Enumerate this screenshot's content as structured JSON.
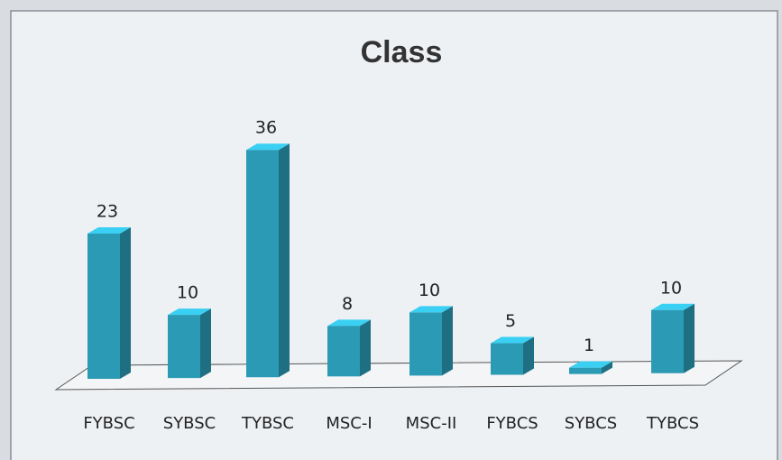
{
  "chart_data": {
    "type": "bar3d",
    "title": "Class",
    "categories": [
      "FYBSC",
      "SYBSC",
      "TYBSC",
      "MSC-I",
      "MSC-II",
      "FYBCS",
      "SYBCS",
      "TYBCS"
    ],
    "values": [
      23,
      10,
      36,
      8,
      10,
      5,
      1,
      10
    ],
    "color": "#2b9ab4"
  }
}
